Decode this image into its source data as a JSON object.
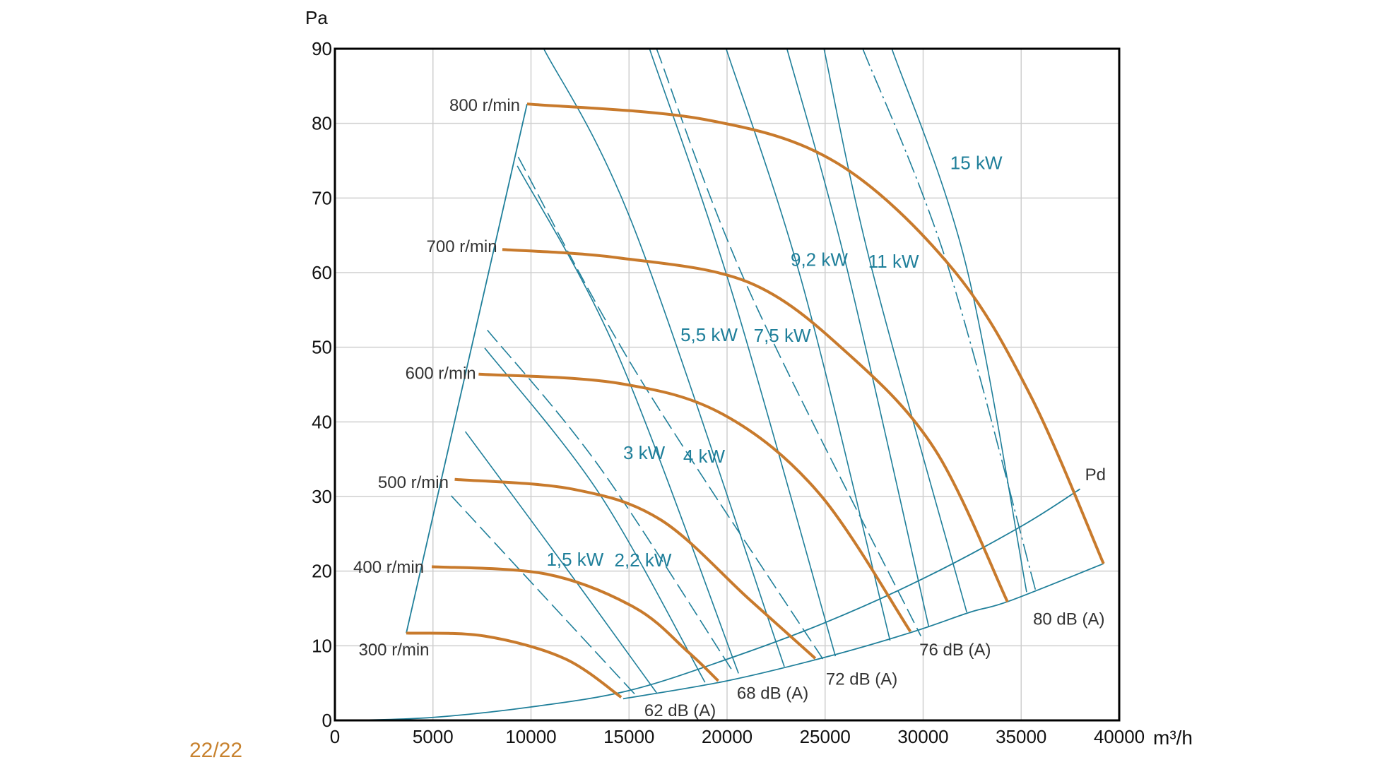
{
  "page_number": "22/22",
  "chart_data": {
    "type": "line",
    "xlabel": "m³/h",
    "ylabel": "Pa",
    "xlim": [
      0,
      40000
    ],
    "ylim": [
      0,
      90
    ],
    "x_ticks": [
      "0",
      "5000",
      "10000",
      "15000",
      "20000",
      "25000",
      "30000",
      "35000",
      "40000"
    ],
    "y_ticks": [
      "0",
      "10",
      "20",
      "30",
      "40",
      "50",
      "60",
      "70",
      "80",
      "90"
    ],
    "grid": true,
    "colors": {
      "speed": "#c87a2c",
      "power": "#1f7f9a",
      "noise": "#1f7f9a",
      "grid": "#cfcfcf",
      "page_number": "#c8822e"
    },
    "speed_curves": [
      {
        "label": "300 r/min",
        "points": [
          [
            3640,
            11.7
          ],
          [
            7640,
            11.3
          ],
          [
            11700,
            8.3
          ],
          [
            14600,
            3.1
          ]
        ]
      },
      {
        "label": "400 r/min",
        "points": [
          [
            4940,
            20.6
          ],
          [
            10800,
            19.6
          ],
          [
            15300,
            15.1
          ],
          [
            18000,
            9.2
          ],
          [
            19550,
            5.3
          ]
        ]
      },
      {
        "label": "500 r/min",
        "points": [
          [
            6110,
            32.3
          ],
          [
            12100,
            31
          ],
          [
            16600,
            26.9
          ],
          [
            21100,
            16.3
          ],
          [
            24500,
            8.3
          ]
        ]
      },
      {
        "label": "600 r/min",
        "points": [
          [
            7330,
            46.4
          ],
          [
            14400,
            45.2
          ],
          [
            19800,
            41
          ],
          [
            24700,
            30.4
          ],
          [
            29350,
            11.9
          ]
        ]
      },
      {
        "label": "700 r/min",
        "points": [
          [
            8540,
            63.1
          ],
          [
            14400,
            62
          ],
          [
            21100,
            58.7
          ],
          [
            26100,
            49.3
          ],
          [
            30600,
            36.3
          ],
          [
            34300,
            15.9
          ]
        ]
      },
      {
        "label": "800 r/min",
        "points": [
          [
            9800,
            82.6
          ],
          [
            18900,
            80.5
          ],
          [
            25600,
            74.7
          ],
          [
            31500,
            60.5
          ],
          [
            35500,
            43.4
          ],
          [
            39200,
            21
          ]
        ]
      }
    ],
    "power_lines": [
      {
        "label": "1,5 kW",
        "points": [
          [
            6651,
            38.7
          ],
          [
            11685,
            20.8
          ],
          [
            16403,
            3.7
          ]
        ]
      },
      {
        "label": "2,2 kW",
        "points": [
          [
            7640,
            49.9
          ],
          [
            13483,
            30.4
          ],
          [
            18875,
            5.1
          ]
        ]
      },
      {
        "label": "3 kW",
        "points": [
          [
            9303,
            74.3
          ],
          [
            14382,
            49.3
          ],
          [
            20583,
            6.3
          ]
        ]
      },
      {
        "label": "4 kW",
        "points": [
          [
            10651,
            90
          ],
          [
            15280,
            65.8
          ],
          [
            22920,
            7.2
          ]
        ]
      },
      {
        "label": "5,5 kW",
        "points": [
          [
            16044,
            90
          ],
          [
            20223,
            57.6
          ],
          [
            25526,
            8.6
          ]
        ]
      },
      {
        "label": "7,5 kW",
        "points": [
          [
            19953,
            90
          ],
          [
            23818,
            58.7
          ],
          [
            28312,
            10.7
          ]
        ]
      },
      {
        "label": "9,2 kW",
        "points": [
          [
            23054,
            90
          ],
          [
            26065,
            61.1
          ],
          [
            30290,
            12.5
          ]
        ]
      },
      {
        "label": "11 kW",
        "points": [
          [
            24942,
            90
          ],
          [
            27324,
            61.1
          ],
          [
            32222,
            14.5
          ]
        ]
      },
      {
        "label": "15  kW",
        "points": [
          [
            28403,
            90
          ],
          [
            32177,
            61.1
          ],
          [
            35278,
            17.2
          ]
        ]
      }
    ],
    "noise_lines": [
      {
        "label": "62 dB (A)",
        "style": "dashed",
        "points": [
          [
            5932,
            30.1
          ],
          [
            10786,
            16.3
          ],
          [
            15370,
            3.3
          ]
        ]
      },
      {
        "label": "68 dB (A)",
        "style": "dashed",
        "points": [
          [
            7775,
            52.3
          ],
          [
            13483,
            34
          ],
          [
            20358,
            6.3
          ]
        ]
      },
      {
        "label": "72 dB (A)",
        "style": "dashed",
        "points": [
          [
            9348,
            75.5
          ],
          [
            15280,
            47
          ],
          [
            24942,
            8
          ]
        ]
      },
      {
        "label": "76 dB (A)",
        "style": "dashed",
        "points": [
          [
            16403,
            90
          ],
          [
            21122,
            57.6
          ],
          [
            29885,
            11.3
          ]
        ]
      },
      {
        "label": "80 dB (A)",
        "style": "dash-dot",
        "points": [
          [
            26920,
            90
          ],
          [
            31233,
            61.1
          ],
          [
            35727,
            17.5
          ]
        ]
      }
    ],
    "envelope": [
      [
        3640,
        11.7
      ],
      [
        9800,
        82.6
      ]
    ],
    "pd_curve": {
      "label": "Pd",
      "points": [
        [
          1000,
          0
        ],
        [
          5000,
          0.4
        ],
        [
          10000,
          1.8
        ],
        [
          15000,
          4
        ],
        [
          20000,
          8.2
        ],
        [
          25000,
          13.1
        ],
        [
          30000,
          19
        ],
        [
          35000,
          26
        ],
        [
          38000,
          31
        ]
      ]
    },
    "lower_boundary": [
      [
        14700,
        2.9
      ],
      [
        20000,
        5.3
      ],
      [
        25200,
        8.6
      ],
      [
        29400,
        11.8
      ],
      [
        32400,
        14.5
      ],
      [
        34400,
        16
      ],
      [
        39200,
        21
      ]
    ]
  }
}
